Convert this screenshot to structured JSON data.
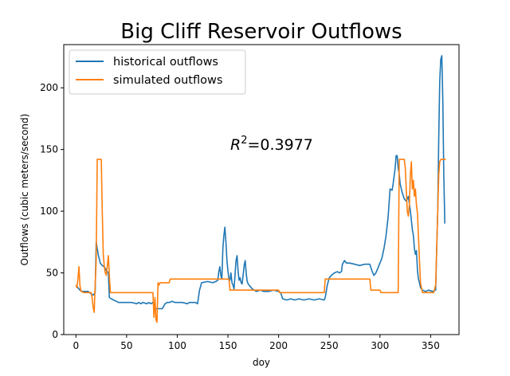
{
  "chart_data": {
    "type": "line",
    "title": "Big Cliff Reservoir Outflows",
    "xlabel": "doy",
    "ylabel": "Outflows (cubic meters/second)",
    "xlim": [
      -12,
      378
    ],
    "ylim": [
      0,
      235
    ],
    "xticks": [
      0,
      50,
      100,
      150,
      200,
      250,
      300,
      350
    ],
    "yticks": [
      0,
      50,
      100,
      150,
      200
    ],
    "grid": false,
    "legend_position": "top-left",
    "annotation": {
      "prefix": "R",
      "superscript": "2",
      "suffix": "=0.3977",
      "x": 150,
      "y": 150
    },
    "series": [
      {
        "name": "historical outflows",
        "color": "#1f77b4",
        "points": [
          [
            0,
            40
          ],
          [
            2,
            38
          ],
          [
            4,
            36
          ],
          [
            6,
            35
          ],
          [
            8,
            35
          ],
          [
            12,
            35
          ],
          [
            15,
            33
          ],
          [
            17,
            32
          ],
          [
            19,
            34
          ],
          [
            20,
            75
          ],
          [
            22,
            65
          ],
          [
            24,
            58
          ],
          [
            26,
            56
          ],
          [
            28,
            55
          ],
          [
            30,
            52
          ],
          [
            32,
            50
          ],
          [
            33,
            30
          ],
          [
            35,
            29
          ],
          [
            37,
            28
          ],
          [
            40,
            27
          ],
          [
            42,
            26
          ],
          [
            45,
            26
          ],
          [
            50,
            26
          ],
          [
            55,
            26
          ],
          [
            60,
            25
          ],
          [
            62,
            26
          ],
          [
            64,
            25
          ],
          [
            66,
            26
          ],
          [
            70,
            25
          ],
          [
            72,
            26
          ],
          [
            74,
            25
          ],
          [
            76,
            26
          ],
          [
            78,
            21
          ],
          [
            85,
            21
          ],
          [
            86,
            22
          ],
          [
            88,
            25
          ],
          [
            90,
            26
          ],
          [
            92,
            26
          ],
          [
            95,
            27
          ],
          [
            98,
            26
          ],
          [
            100,
            26
          ],
          [
            105,
            26
          ],
          [
            110,
            25
          ],
          [
            112,
            26
          ],
          [
            115,
            26
          ],
          [
            118,
            26
          ],
          [
            120,
            25
          ],
          [
            122,
            36
          ],
          [
            124,
            42
          ],
          [
            130,
            43
          ],
          [
            135,
            42
          ],
          [
            138,
            43
          ],
          [
            140,
            44
          ],
          [
            141,
            51
          ],
          [
            142,
            55
          ],
          [
            143,
            48
          ],
          [
            144,
            45
          ],
          [
            145,
            70
          ],
          [
            146,
            80
          ],
          [
            147,
            87
          ],
          [
            148,
            75
          ],
          [
            149,
            60
          ],
          [
            150,
            52
          ],
          [
            151,
            45
          ],
          [
            152,
            44
          ],
          [
            153,
            50
          ],
          [
            154,
            42
          ],
          [
            155,
            40
          ],
          [
            156,
            37
          ],
          [
            157,
            48
          ],
          [
            158,
            60
          ],
          [
            159,
            64
          ],
          [
            160,
            52
          ],
          [
            161,
            44
          ],
          [
            162,
            46
          ],
          [
            163,
            42
          ],
          [
            164,
            41
          ],
          [
            165,
            48
          ],
          [
            166,
            56
          ],
          [
            167,
            60
          ],
          [
            168,
            50
          ],
          [
            169,
            43
          ],
          [
            170,
            41
          ],
          [
            172,
            39
          ],
          [
            174,
            37
          ],
          [
            176,
            36
          ],
          [
            178,
            35
          ],
          [
            182,
            36
          ],
          [
            185,
            35
          ],
          [
            190,
            35
          ],
          [
            195,
            36
          ],
          [
            200,
            35
          ],
          [
            202,
            34
          ],
          [
            204,
            29
          ],
          [
            208,
            28
          ],
          [
            212,
            29
          ],
          [
            216,
            28
          ],
          [
            220,
            29
          ],
          [
            225,
            28
          ],
          [
            230,
            29
          ],
          [
            235,
            28
          ],
          [
            240,
            29
          ],
          [
            245,
            28
          ],
          [
            246,
            30
          ],
          [
            248,
            40
          ],
          [
            250,
            46
          ],
          [
            252,
            48
          ],
          [
            255,
            50
          ],
          [
            258,
            51
          ],
          [
            260,
            50
          ],
          [
            262,
            51
          ],
          [
            263,
            57
          ],
          [
            265,
            60
          ],
          [
            267,
            58
          ],
          [
            270,
            58
          ],
          [
            275,
            57
          ],
          [
            280,
            56
          ],
          [
            285,
            57
          ],
          [
            290,
            57
          ],
          [
            292,
            52
          ],
          [
            294,
            48
          ],
          [
            296,
            50
          ],
          [
            298,
            54
          ],
          [
            300,
            58
          ],
          [
            302,
            62
          ],
          [
            304,
            70
          ],
          [
            306,
            80
          ],
          [
            308,
            95
          ],
          [
            310,
            118
          ],
          [
            312,
            117
          ],
          [
            313,
            122
          ],
          [
            315,
            135
          ],
          [
            316,
            145
          ],
          [
            317,
            145
          ],
          [
            318,
            135
          ],
          [
            319,
            130
          ],
          [
            320,
            122
          ],
          [
            322,
            115
          ],
          [
            324,
            110
          ],
          [
            326,
            108
          ],
          [
            328,
            112
          ],
          [
            330,
            100
          ],
          [
            332,
            85
          ],
          [
            333,
            80
          ],
          [
            334,
            70
          ],
          [
            335,
            65
          ],
          [
            336,
            68
          ],
          [
            337,
            52
          ],
          [
            338,
            45
          ],
          [
            339,
            42
          ],
          [
            340,
            38
          ],
          [
            342,
            36
          ],
          [
            345,
            35
          ],
          [
            348,
            36
          ],
          [
            352,
            35
          ],
          [
            355,
            36
          ],
          [
            357,
            100
          ],
          [
            358,
            160
          ],
          [
            359,
            205
          ],
          [
            360,
            223
          ],
          [
            361,
            226
          ],
          [
            362,
            190
          ],
          [
            363,
            130
          ],
          [
            364,
            90
          ]
        ]
      },
      {
        "name": "simulated outflows",
        "color": "#ff7f0e",
        "points": [
          [
            0,
            40
          ],
          [
            1,
            38
          ],
          [
            2,
            45
          ],
          [
            3,
            55
          ],
          [
            4,
            40
          ],
          [
            5,
            35
          ],
          [
            8,
            34
          ],
          [
            15,
            34
          ],
          [
            16,
            30
          ],
          [
            17,
            22
          ],
          [
            18,
            18
          ],
          [
            19,
            40
          ],
          [
            20,
            60
          ],
          [
            21,
            142
          ],
          [
            25,
            142
          ],
          [
            26,
            100
          ],
          [
            27,
            65
          ],
          [
            28,
            55
          ],
          [
            29,
            50
          ],
          [
            30,
            48
          ],
          [
            31,
            56
          ],
          [
            32,
            64
          ],
          [
            33,
            48
          ],
          [
            34,
            34
          ],
          [
            60,
            34
          ],
          [
            75,
            34
          ],
          [
            76,
            34
          ],
          [
            77,
            14
          ],
          [
            78,
            30
          ],
          [
            79,
            12
          ],
          [
            80,
            10
          ],
          [
            81,
            42
          ],
          [
            82,
            40
          ],
          [
            83,
            42
          ],
          [
            88,
            42
          ],
          [
            92,
            42
          ],
          [
            93,
            45
          ],
          [
            150,
            45
          ],
          [
            151,
            45
          ],
          [
            152,
            36
          ],
          [
            200,
            36
          ],
          [
            201,
            34
          ],
          [
            245,
            34
          ],
          [
            246,
            45
          ],
          [
            290,
            45
          ],
          [
            291,
            36
          ],
          [
            300,
            36
          ],
          [
            301,
            34
          ],
          [
            310,
            34
          ],
          [
            311,
            34
          ],
          [
            318,
            34
          ],
          [
            319,
            142
          ],
          [
            324,
            142
          ],
          [
            325,
            135
          ],
          [
            327,
            100
          ],
          [
            328,
            96
          ],
          [
            329,
            105
          ],
          [
            330,
            130
          ],
          [
            331,
            140
          ],
          [
            332,
            118
          ],
          [
            333,
            125
          ],
          [
            334,
            112
          ],
          [
            335,
            118
          ],
          [
            336,
            105
          ],
          [
            337,
            98
          ],
          [
            338,
            80
          ],
          [
            339,
            60
          ],
          [
            340,
            42
          ],
          [
            341,
            38
          ],
          [
            342,
            34
          ],
          [
            353,
            34
          ],
          [
            355,
            40
          ],
          [
            357,
            100
          ],
          [
            358,
            130
          ],
          [
            359,
            140
          ],
          [
            360,
            142
          ],
          [
            365,
            142
          ]
        ]
      }
    ]
  }
}
